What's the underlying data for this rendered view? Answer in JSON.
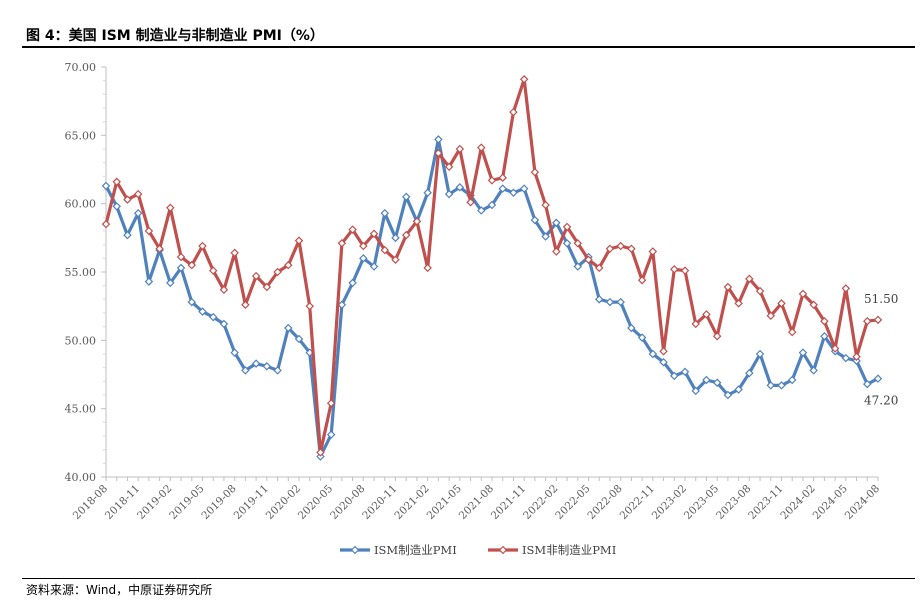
{
  "header": {
    "title": "图 4：美国 ISM 制造业与非制造业 PMI（%）"
  },
  "footer": {
    "source": "资料来源：Wind，中原证券研究所"
  },
  "chart_data": {
    "type": "line",
    "title": "图 4：美国 ISM 制造业与非制造业 PMI（%）",
    "xlabel": "",
    "ylabel": "",
    "ylim": [
      40,
      70
    ],
    "yticks": [
      "40.00",
      "45.00",
      "50.00",
      "55.00",
      "60.00",
      "65.00",
      "70.00"
    ],
    "grid": false,
    "legend_position": "bottom-center",
    "x_tick_labels": [
      "2018-08",
      "2018-11",
      "2019-02",
      "2019-05",
      "2019-08",
      "2019-11",
      "2020-02",
      "2020-05",
      "2020-08",
      "2020-11",
      "2021-02",
      "2021-05",
      "2021-08",
      "2021-11",
      "2022-02",
      "2022-05",
      "2022-08",
      "2022-11",
      "2023-02",
      "2023-05",
      "2023-08",
      "2023-11",
      "2024-02",
      "2024-05",
      "2024-08"
    ],
    "end_labels": {
      "nonmanufacturing": "51.50",
      "manufacturing": "47.20"
    },
    "series": [
      {
        "name": "ISM制造业PMI",
        "color": "#4f81bd",
        "values": [
          61.3,
          59.8,
          57.7,
          59.3,
          54.3,
          56.6,
          54.2,
          55.3,
          52.8,
          52.1,
          51.7,
          51.2,
          49.1,
          47.8,
          48.3,
          48.1,
          47.8,
          50.9,
          50.1,
          49.1,
          41.5,
          43.1,
          52.6,
          54.2,
          56.0,
          55.4,
          59.3,
          57.5,
          60.5,
          58.7,
          60.8,
          64.7,
          60.7,
          61.2,
          60.6,
          59.5,
          59.9,
          61.1,
          60.8,
          61.1,
          58.8,
          57.6,
          58.6,
          57.1,
          55.4,
          56.1,
          53.0,
          52.8,
          52.8,
          50.9,
          50.2,
          49.0,
          48.4,
          47.4,
          47.7,
          46.3,
          47.1,
          46.9,
          46.0,
          46.4,
          47.6,
          49.0,
          46.7,
          46.7,
          47.1,
          49.1,
          47.8,
          50.3,
          49.2,
          48.7,
          48.5,
          46.8,
          47.2
        ]
      },
      {
        "name": "ISM非制造业PMI",
        "color": "#c0504d",
        "values": [
          58.5,
          61.6,
          60.3,
          60.7,
          58.0,
          56.7,
          59.7,
          56.1,
          55.5,
          56.9,
          55.1,
          53.7,
          56.4,
          52.6,
          54.7,
          53.9,
          55.0,
          55.5,
          57.3,
          52.5,
          41.8,
          45.4,
          57.1,
          58.1,
          56.9,
          57.8,
          56.6,
          55.9,
          57.7,
          58.7,
          55.3,
          63.7,
          62.7,
          64.0,
          60.1,
          64.1,
          61.7,
          61.9,
          66.7,
          69.1,
          62.3,
          59.9,
          56.5,
          58.3,
          57.1,
          55.9,
          55.3,
          56.7,
          56.9,
          56.7,
          54.4,
          56.5,
          49.2,
          55.2,
          55.1,
          51.2,
          51.9,
          50.3,
          53.9,
          52.7,
          54.5,
          53.6,
          51.8,
          52.7,
          50.6,
          53.4,
          52.6,
          51.4,
          49.4,
          53.8,
          48.8,
          51.4,
          51.5
        ]
      }
    ]
  }
}
